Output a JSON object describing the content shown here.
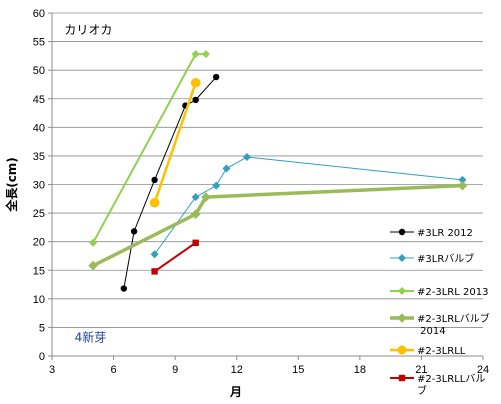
{
  "chart_data": {
    "type": "line",
    "title": "",
    "xlabel": "月",
    "ylabel": "全長(cm)",
    "xlim": [
      3,
      24
    ],
    "ylim": [
      0,
      60
    ],
    "x_ticks": [
      3,
      6,
      9,
      12,
      15,
      18,
      21,
      24
    ],
    "y_ticks": [
      0,
      5,
      10,
      15,
      20,
      25,
      30,
      35,
      40,
      45,
      50,
      55,
      60
    ],
    "grid": {
      "horizontal": true,
      "vertical": false
    },
    "legend_position": "right",
    "annotations": [
      {
        "text": "カリオカ",
        "x": 3.6,
        "y": 57
      },
      {
        "text": "4新芽",
        "x": 4.1,
        "y": 3.2
      }
    ],
    "series": [
      {
        "name": "#3LR 2012",
        "color": "#000000",
        "marker": "circle",
        "width": 1,
        "points": [
          [
            6.5,
            11.8
          ],
          [
            7.0,
            21.8
          ],
          [
            8.0,
            30.8
          ],
          [
            9.5,
            43.8
          ],
          [
            10.0,
            44.8
          ],
          [
            11.0,
            48.8
          ]
        ]
      },
      {
        "name": "#3LRバルブ",
        "color": "#31a0c0",
        "marker": "diamond",
        "width": 1,
        "points": [
          [
            8.0,
            17.8
          ],
          [
            10.0,
            27.8
          ],
          [
            11.0,
            29.8
          ],
          [
            11.5,
            32.8
          ],
          [
            12.5,
            34.8
          ],
          [
            23.0,
            30.8
          ]
        ]
      },
      {
        "name": "#2-3LRL 2013",
        "color": "#92d050",
        "marker": "diamond",
        "width": 2,
        "points": [
          [
            5.0,
            19.8
          ],
          [
            10.0,
            52.8
          ],
          [
            10.5,
            52.8
          ]
        ]
      },
      {
        "name": "#2-3LRLバルブ 2014",
        "color": "#9bbb59",
        "marker": "diamond",
        "width": 3.5,
        "points": [
          [
            5.0,
            15.8
          ],
          [
            10.0,
            24.8
          ],
          [
            10.5,
            27.8
          ],
          [
            23.0,
            29.8
          ]
        ]
      },
      {
        "name": "#2-3LRLL",
        "color": "#ffc000",
        "marker": "circle",
        "width": 2.5,
        "points": [
          [
            8.0,
            26.8
          ],
          [
            10.0,
            47.8
          ]
        ]
      },
      {
        "name": "#2-3LRLLバルブ",
        "color": "#c00000",
        "marker": "square",
        "width": 2,
        "points": [
          [
            8.0,
            14.8
          ],
          [
            10.0,
            19.8
          ]
        ]
      }
    ]
  }
}
